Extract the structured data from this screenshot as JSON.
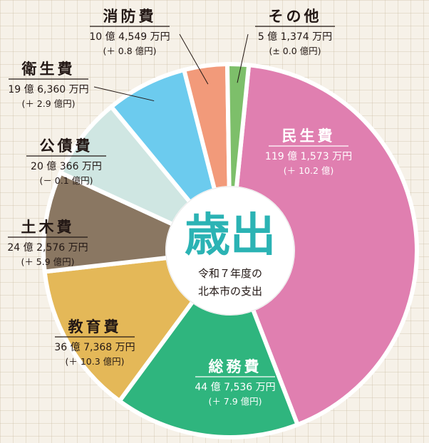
{
  "chart_data": {
    "type": "pie",
    "title": "歳出",
    "subtitle_lines": [
      "令和７年度の",
      "北本市の支出"
    ],
    "unit": "億円",
    "slices": [
      {
        "name": "民生費",
        "value": 119.1573,
        "amount_label": "119 億 1,573 万円",
        "change_label": "(＋ 10.2 億)",
        "color": "#e07fb0"
      },
      {
        "name": "総務費",
        "value": 44.7536,
        "amount_label": "44 億 7,536 万円",
        "change_label": "(＋ 7.9 億円)",
        "color": "#2fb57e"
      },
      {
        "name": "教育費",
        "value": 36.7368,
        "amount_label": "36 億 7,368 万円",
        "change_label": "(＋ 10.3 億円)",
        "color": "#e4b858"
      },
      {
        "name": "土木費",
        "value": 24.2576,
        "amount_label": "24 億 2,576 万円",
        "change_label": "(＋ 5.9 億円)",
        "color": "#8a7762"
      },
      {
        "name": "公債費",
        "value": 20.0366,
        "amount_label": "20 億 366 万円",
        "change_label": "(－ 0.1 億円)",
        "color": "#cfe6e2"
      },
      {
        "name": "衛生費",
        "value": 19.636,
        "amount_label": "19 億 6,360 万円",
        "change_label": "(＋ 2.9 億円)",
        "color": "#6ccbee"
      },
      {
        "name": "消防費",
        "value": 10.4549,
        "amount_label": "10 億 4,549 万円",
        "change_label": "(＋ 0.8 億円)",
        "color": "#f29a7a"
      },
      {
        "name": "その他",
        "value": 5.1374,
        "amount_label": "5 億 1,374 万円",
        "change_label": "(± 0.0 億円)",
        "color": "#7dbf6a"
      }
    ]
  },
  "colors": {
    "title": "#2bb3b4",
    "text": "#231815",
    "underline": "#231815",
    "separator": "#ffffff",
    "inner_white": "#ffffff"
  }
}
